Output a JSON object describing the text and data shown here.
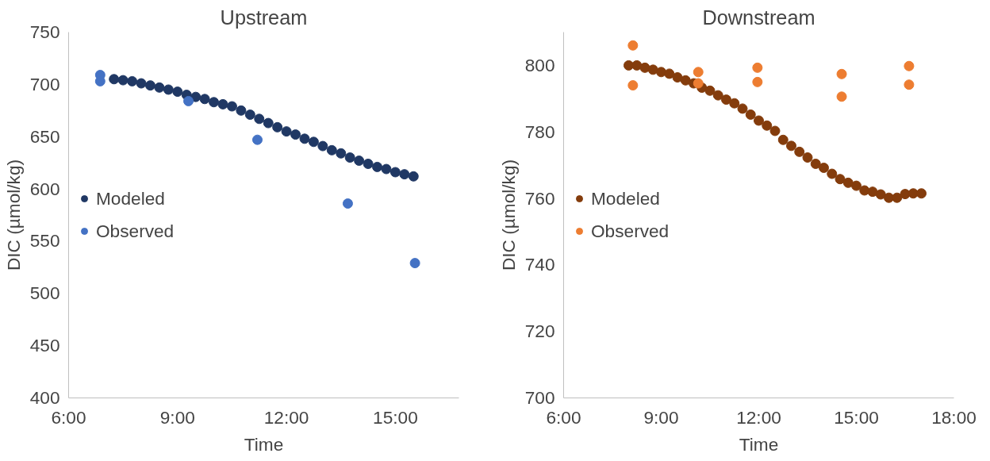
{
  "chart_data": [
    {
      "type": "scatter",
      "title": "Upstream",
      "xlabel": "Time",
      "ylabel": "DIC (µmol/kg)",
      "marker": "circle",
      "grid": false,
      "legend": "left",
      "xlim": [
        6,
        16.75
      ],
      "xticks": [
        {
          "value": 6,
          "label": "6:00"
        },
        {
          "value": 9,
          "label": "9:00"
        },
        {
          "value": 12,
          "label": "12:00"
        },
        {
          "value": 15,
          "label": "15:00"
        }
      ],
      "ylim": [
        400,
        750
      ],
      "yticks": [
        400,
        450,
        500,
        550,
        600,
        650,
        700,
        750
      ],
      "series": [
        {
          "name": "Modeled",
          "color": "#203864",
          "x": [
            7.25,
            7.5,
            7.75,
            8,
            8.25,
            8.5,
            8.75,
            9,
            9.25,
            9.5,
            9.75,
            10,
            10.25,
            10.5,
            10.75,
            11,
            11.25,
            11.5,
            11.75,
            12,
            12.25,
            12.5,
            12.75,
            13,
            13.25,
            13.5,
            13.75,
            14,
            14.25,
            14.5,
            14.75,
            15,
            15.25,
            15.5
          ],
          "values": [
            705,
            704,
            703,
            701,
            699,
            697,
            695,
            693,
            690,
            688,
            686,
            683,
            681,
            679,
            675,
            671,
            667,
            663,
            659,
            655,
            652,
            648,
            645,
            641,
            637,
            634,
            630,
            627,
            624,
            621,
            619,
            616,
            614,
            612
          ]
        },
        {
          "name": "Observed",
          "color": "#4472c4",
          "x": [
            6.87,
            6.87,
            9.3,
            11.2,
            13.69,
            15.54
          ],
          "values": [
            709,
            703,
            684,
            647,
            586,
            529
          ]
        }
      ]
    },
    {
      "type": "scatter",
      "title": "Downstream",
      "xlabel": "Time",
      "ylabel": "DIC (µmol/kg)",
      "marker": "circle",
      "grid": false,
      "legend": "left",
      "xlim": [
        6,
        18
      ],
      "xticks": [
        {
          "value": 6,
          "label": "6:00"
        },
        {
          "value": 9,
          "label": "9:00"
        },
        {
          "value": 12,
          "label": "12:00"
        },
        {
          "value": 15,
          "label": "15:00"
        },
        {
          "value": 18,
          "label": "18:00"
        }
      ],
      "ylim": [
        700,
        810
      ],
      "yticks": [
        700,
        720,
        740,
        760,
        780,
        800
      ],
      "series": [
        {
          "name": "Modeled",
          "color": "#843c0c",
          "x": [
            8,
            8.25,
            8.5,
            8.75,
            9,
            9.25,
            9.5,
            9.75,
            10,
            10.25,
            10.5,
            10.75,
            11,
            11.25,
            11.5,
            11.75,
            12,
            12.25,
            12.5,
            12.75,
            13,
            13.25,
            13.5,
            13.75,
            14,
            14.25,
            14.5,
            14.75,
            15,
            15.25,
            15.5,
            15.75,
            16,
            16.25,
            16.5,
            16.75,
            17
          ],
          "values": [
            800,
            800,
            799.3,
            798.7,
            798,
            797.5,
            796.4,
            795.5,
            794.6,
            793.3,
            792.4,
            791,
            789.7,
            788.6,
            787,
            785.2,
            783.4,
            781.9,
            780.3,
            777.6,
            775.8,
            774,
            772.3,
            770.4,
            769.2,
            767.4,
            765.8,
            764.7,
            763.8,
            762.4,
            762,
            761.2,
            760.2,
            760.2,
            761.3,
            761.5,
            761.5
          ]
        },
        {
          "name": "Observed",
          "color": "#ed7d31",
          "x": [
            8.13,
            8.13,
            10.14,
            10.14,
            11.96,
            11.96,
            14.55,
            14.55,
            16.62,
            16.62
          ],
          "values": [
            806,
            794,
            798,
            794.6,
            799.3,
            795,
            797.4,
            790.6,
            799.8,
            794.2
          ]
        }
      ]
    }
  ]
}
